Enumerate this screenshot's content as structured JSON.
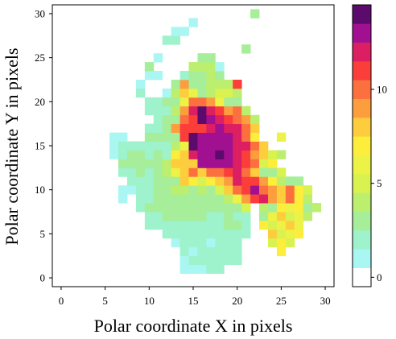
{
  "chart_data": {
    "type": "heatmap",
    "title": "",
    "xlabel": "Polar coordinate X in pixels",
    "ylabel": "Polar coordinate Y in pixels",
    "xlim": [
      -1,
      31
    ],
    "ylim": [
      -1,
      31
    ],
    "x_ticks": [
      "0",
      "5",
      "10",
      "15",
      "20",
      "25",
      "30"
    ],
    "y_ticks": [
      "0",
      "5",
      "10",
      "15",
      "20",
      "25",
      "30"
    ],
    "grid": false,
    "colorbar": {
      "range": [
        0,
        14
      ],
      "ticks": [
        "0",
        "5",
        "10"
      ],
      "colors": [
        "#ffffff",
        "#aaf6f2",
        "#9ef2cc",
        "#a6ee9a",
        "#bdef6e",
        "#d9f250",
        "#ecf246",
        "#fcee3a",
        "#fdcd3e",
        "#fc9e3e",
        "#fc7040",
        "#fc3e3a",
        "#dc1e62",
        "#a01090",
        "#5c0a6c"
      ]
    },
    "grid_rows_note": "",
    "rows": [
      "      ",
      "                           ",
      "                   ",
      "                ",
      "               ",
      "                  ",
      "                         ",
      "              ",
      "                    ",
      "                    ",
      "                      ",
      "                              ",
      "                              ",
      "                              ",
      "                               ",
      "                              ",
      "                             ",
      "                               ",
      "                    ",
      "                  ",
      "                   ",
      "                  ",
      "                   ",
      "                     ",
      "                     ",
      "                      ",
      "                      ",
      "                       ",
      "                       ",
      "                        ",
      "                       "
    ]
  }
}
